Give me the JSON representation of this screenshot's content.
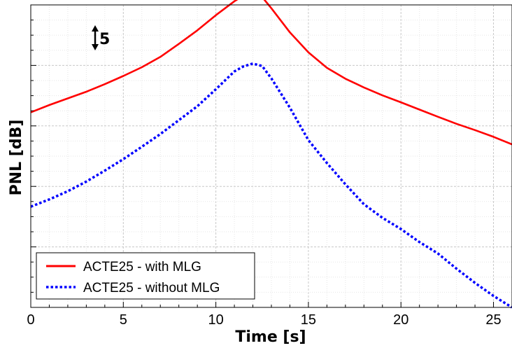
{
  "chart_data": {
    "type": "line",
    "xlabel": "Time [s]",
    "ylabel": "PNL [dB]",
    "xlim": [
      0,
      26
    ],
    "ylim": [
      0,
      100
    ],
    "x_ticks": [
      0,
      5,
      10,
      15,
      20,
      25
    ],
    "x_tick_labels": [
      "0",
      "5",
      "10",
      "15",
      "20",
      "25"
    ],
    "y_tick_labels_shown": false,
    "grid": true,
    "legend_position": "bottom-left",
    "scale_annotation": "5",
    "series": [
      {
        "name": "ACTE25 - with MLG",
        "color": "#ff0000",
        "style": "solid",
        "x": [
          0,
          1,
          2,
          3,
          4,
          5,
          6,
          7,
          8,
          9,
          10,
          11,
          11.5,
          12,
          12.5,
          13,
          14,
          15,
          16,
          17,
          18,
          19,
          20,
          21,
          22,
          23,
          24,
          25,
          26
        ],
        "y": [
          64.5,
          66.9,
          69.1,
          71.3,
          73.8,
          76.5,
          79.4,
          82.8,
          87.1,
          91.6,
          96.6,
          101.2,
          103.1,
          104.0,
          102.6,
          98.9,
          90.9,
          84.3,
          79.2,
          75.6,
          72.7,
          70.1,
          67.8,
          65.4,
          63.0,
          60.7,
          58.6,
          56.4,
          53.9
        ]
      },
      {
        "name": "ACTE25 - without MLG",
        "color": "#0000ff",
        "style": "dotted",
        "x": [
          0,
          1,
          2,
          3,
          4,
          5,
          6,
          7,
          8,
          9,
          10,
          11,
          11.5,
          12,
          12.5,
          13,
          14,
          15,
          16,
          17,
          18,
          19,
          20,
          21,
          22,
          23,
          24,
          25,
          26
        ],
        "y": [
          33.3,
          35.7,
          38.4,
          41.6,
          45.2,
          49.0,
          53.1,
          57.3,
          61.9,
          66.5,
          72.1,
          78.0,
          79.7,
          80.6,
          79.8,
          75.7,
          66.0,
          55.3,
          47.7,
          40.7,
          34.1,
          29.6,
          25.9,
          21.6,
          17.8,
          12.8,
          8.1,
          3.8,
          0.0
        ]
      }
    ]
  }
}
